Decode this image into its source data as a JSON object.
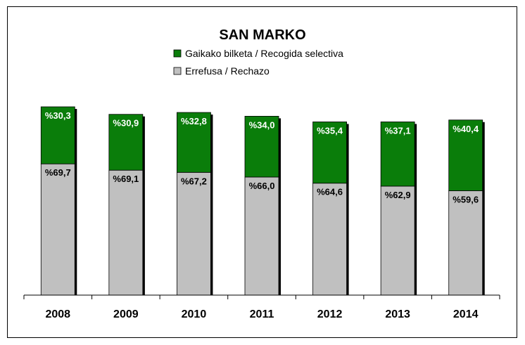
{
  "colors": {
    "recycling": "#0a7d0a",
    "refuse": "#c0c0c0",
    "recycling_label": "#ffffff",
    "refuse_label": "#000000"
  },
  "chart_data": {
    "type": "bar",
    "stacked": true,
    "title": "SAN MARKO",
    "categories": [
      "2008",
      "2009",
      "2010",
      "2011",
      "2012",
      "2013",
      "2014"
    ],
    "series": [
      {
        "name": "Errefusa / Rechazo",
        "values": [
          69.7,
          69.1,
          67.2,
          66.0,
          64.6,
          62.9,
          59.6
        ],
        "labels": [
          "%69,7",
          "%69,1",
          "%67,2",
          "%66,0",
          "%64,6",
          "%62,9",
          "%59,6"
        ]
      },
      {
        "name": "Gaikako bilketa / Recogida selectiva",
        "values": [
          30.3,
          30.9,
          32.8,
          34.0,
          35.4,
          37.1,
          40.4
        ],
        "labels": [
          "%30,3",
          "%30,9",
          "%32,8",
          "%34,0",
          "%35,4",
          "%37,1",
          "%40,4"
        ]
      }
    ],
    "totals_relative": [
      1.0,
      0.96,
      0.97,
      0.95,
      0.92,
      0.92,
      0.93
    ],
    "legend_position": "top-center",
    "grid": false
  }
}
